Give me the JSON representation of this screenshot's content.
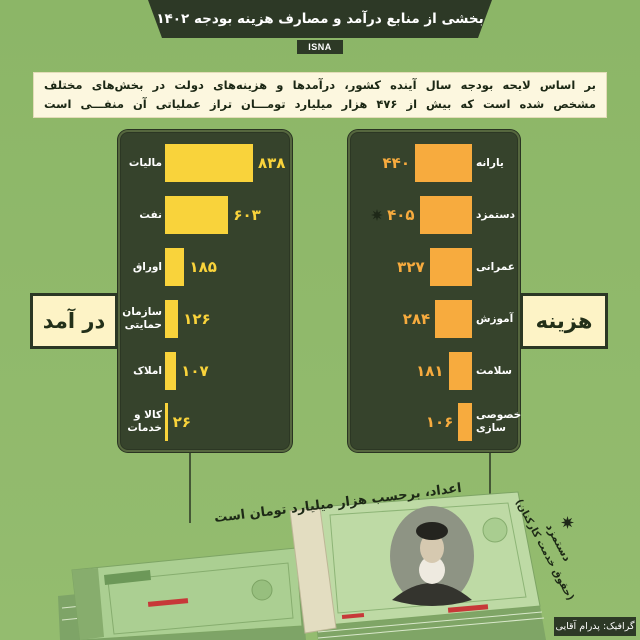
{
  "header": {
    "title": "بخشی از منابع درآمد و مصارف هزینه بودجه ۱۴۰۲",
    "source": "ISNA"
  },
  "intro": {
    "line1": "بر اساس لایحه بودجه سال آینده کشور، درآمدها و هزینه‌های دولت در بخش‌های مختلف",
    "line2": "مشخص شده است که بیش از ۴۷۶ هزار میلیارد تومـــان تراز عملیاتی آن منفـــی است"
  },
  "chart_data": [
    {
      "type": "bar",
      "orientation": "horizontal",
      "title": "در آمد",
      "categories": [
        "مالیات",
        "نفت",
        "اوراق",
        "سازمان حمایتی",
        "املاک",
        "کالا و خدمات"
      ],
      "values": [
        838,
        603,
        185,
        126,
        107,
        26
      ],
      "value_labels": [
        "۸۳۸",
        "۶۰۳",
        "۱۸۵",
        "۱۲۶",
        "۱۰۷",
        "۲۶"
      ],
      "bar_color": "#f9d33b"
    },
    {
      "type": "bar",
      "orientation": "horizontal",
      "title": "هزینه",
      "categories": [
        "یارانه",
        "دستمزد",
        "عمرانی",
        "آموزش",
        "سلامت",
        "خصوصی سازی"
      ],
      "values": [
        440,
        405,
        327,
        284,
        181,
        106
      ],
      "value_labels": [
        "۴۴۰",
        "۴۰۵",
        "۳۲۷",
        "۲۸۴",
        "۱۸۱",
        "۱۰۶"
      ],
      "bar_color": "#f7ab3e",
      "marked_index": 1,
      "marker_icon": "star-icon"
    }
  ],
  "units_note": "اعداد، برحسب هزار میلیارد تومان است",
  "footnote": {
    "icon": "star-icon",
    "line1": "دستمزد",
    "line2": "(حقوق خدمت کارکنان)"
  },
  "credit": "گرافیک: پدرام آقایی",
  "colors": {
    "background": "#8fb86a",
    "banner": "#2d3926",
    "panel": "#36432c",
    "label_box": "#fdf3c6",
    "income_bar": "#f9d33b",
    "expense_bar": "#f7ab3e"
  }
}
